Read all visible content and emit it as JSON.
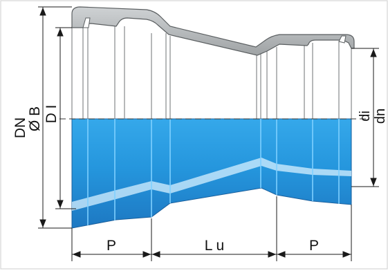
{
  "labels": {
    "dn_left": "DN",
    "ob": "Ø B",
    "di_upper": "D I",
    "di_right": "di",
    "dn_right": "dn",
    "p_left": "P",
    "lu": "L u",
    "p_right": "P"
  },
  "colors": {
    "pipe_blue": "#2a9be0",
    "pipe_dark": "#1c6fb6",
    "pipe_highlight": "#bfe7ff",
    "section_gray": "#b9bcbe",
    "section_dark": "#6d7173",
    "line": "#1a1a1a",
    "frame": "#d6d6d6"
  }
}
